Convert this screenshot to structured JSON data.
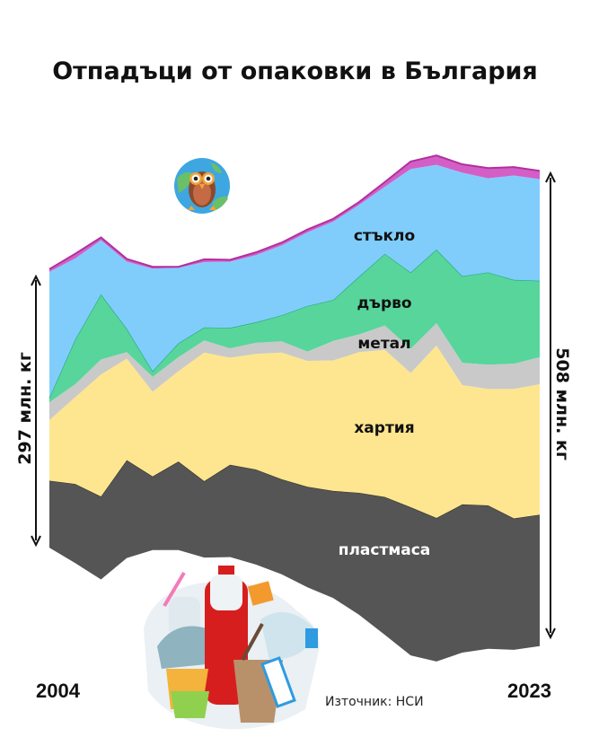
{
  "chart_data": {
    "type": "area",
    "subtype": "streamgraph",
    "title": "Отпадъци от опаковки в България",
    "unit": "млн. кг",
    "x": [
      2004,
      2005,
      2006,
      2007,
      2008,
      2009,
      2010,
      2011,
      2012,
      2013,
      2014,
      2015,
      2016,
      2017,
      2018,
      2019,
      2020,
      2021,
      2022,
      2023
    ],
    "series": [
      {
        "name": "пластмаса",
        "color": "#555555",
        "label_color": "#ffffff",
        "values": [
          72,
          85,
          89,
          105,
          79,
          95,
          82,
          99,
          102,
          102,
          108,
          115,
          131,
          148,
          159,
          154,
          159,
          154,
          141,
          141
        ]
      },
      {
        "name": "хартия",
        "color": "#fde68f",
        "label_color": "#111111",
        "values": [
          65,
          93,
          131,
          109,
          91,
          97,
          138,
          115,
          124,
          136,
          135,
          140,
          151,
          158,
          144,
          185,
          128,
          125,
          139,
          140
        ]
      },
      {
        "name": "метал",
        "color": "#c9c9c9",
        "label_color": "#111111",
        "values": [
          19,
          14,
          16,
          7,
          16,
          15,
          13,
          10,
          12,
          12,
          10,
          21,
          19,
          26,
          26,
          24,
          24,
          26,
          27,
          29
        ]
      },
      {
        "name": "дърво",
        "color": "#58d59b",
        "label_color": "#111111",
        "values": [
          5,
          48,
          70,
          25,
          6,
          15,
          14,
          22,
          22,
          28,
          49,
          44,
          62,
          77,
          82,
          79,
          93,
          99,
          90,
          82
        ]
      },
      {
        "name": "стъкло",
        "color": "#80cdfc",
        "label_color": "#111111",
        "values": [
          135,
          87,
          58,
          72,
          110,
          81,
          70,
          71,
          72,
          75,
          79,
          84,
          77,
          72,
          111,
          91,
          111,
          101,
          112,
          109
        ]
      },
      {
        "name": "",
        "color": "#d35fc6",
        "label_color": "#111111",
        "values": [
          3,
          5,
          3,
          3,
          2,
          1,
          3,
          2,
          3,
          3,
          3,
          3,
          3,
          5,
          8,
          10,
          9,
          11,
          9,
          9
        ]
      }
    ],
    "annotations": {
      "start_total": "297 млн. кг",
      "end_total": "508 млн. кг",
      "start_year": "2004",
      "end_year": "2023"
    },
    "source": "Източник: НСИ",
    "grid": false,
    "legend": "inline labels"
  }
}
